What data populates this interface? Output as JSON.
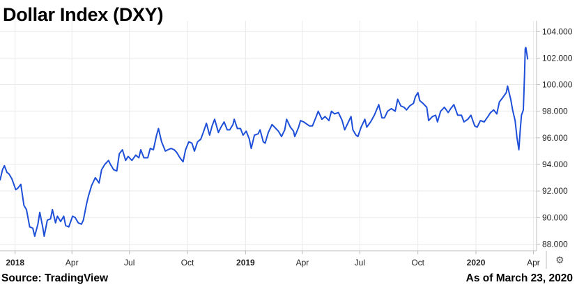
{
  "header": {
    "title": "Dollar Index (DXY)"
  },
  "footer": {
    "source": "Source: TradingView",
    "as_of": "As of March 23, 2020"
  },
  "icons": {
    "settings": "gear-icon"
  },
  "colors": {
    "line": "#1e4fd8",
    "grid": "#e9e9e9",
    "axis": "#bdbdbd"
  },
  "chart_data": {
    "type": "line",
    "title": "Dollar Index (DXY)",
    "ylim": [
      87.5,
      104.8
    ],
    "y_ticks": [
      "88.000",
      "90.000",
      "92.000",
      "94.000",
      "96.000",
      "98.000",
      "100.000",
      "102.000",
      "104.000"
    ],
    "x_ticks": [
      {
        "label": "2018",
        "date": "2018-01-01",
        "bold": true
      },
      {
        "label": "Apr",
        "date": "2018-04-01",
        "bold": false
      },
      {
        "label": "Jul",
        "date": "2018-07-01",
        "bold": false
      },
      {
        "label": "Oct",
        "date": "2018-10-01",
        "bold": false
      },
      {
        "label": "2019",
        "date": "2019-01-01",
        "bold": true
      },
      {
        "label": "Apr",
        "date": "2019-04-01",
        "bold": false
      },
      {
        "label": "Jul",
        "date": "2019-07-01",
        "bold": false
      },
      {
        "label": "Oct",
        "date": "2019-10-01",
        "bold": false
      },
      {
        "label": "2020",
        "date": "2020-01-01",
        "bold": true
      },
      {
        "label": "Apr",
        "date": "2020-04-01",
        "bold": false
      }
    ],
    "xlim": [
      "2017-12-08",
      "2020-04-06"
    ],
    "series": [
      {
        "values": [
          [
            "2017-12-08",
            92.8
          ],
          [
            "2017-12-12",
            93.6
          ],
          [
            "2017-12-15",
            93.9
          ],
          [
            "2017-12-19",
            93.4
          ],
          [
            "2017-12-22",
            93.3
          ],
          [
            "2017-12-27",
            92.9
          ],
          [
            "2018-01-02",
            92.1
          ],
          [
            "2018-01-05",
            92.2
          ],
          [
            "2018-01-10",
            92.5
          ],
          [
            "2018-01-15",
            90.9
          ],
          [
            "2018-01-19",
            90.6
          ],
          [
            "2018-01-24",
            89.3
          ],
          [
            "2018-01-29",
            89.2
          ],
          [
            "2018-02-01",
            88.6
          ],
          [
            "2018-02-06",
            89.5
          ],
          [
            "2018-02-09",
            90.4
          ],
          [
            "2018-02-14",
            89.2
          ],
          [
            "2018-02-16",
            88.6
          ],
          [
            "2018-02-21",
            89.8
          ],
          [
            "2018-02-26",
            89.9
          ],
          [
            "2018-03-01",
            90.6
          ],
          [
            "2018-03-06",
            89.6
          ],
          [
            "2018-03-09",
            90.1
          ],
          [
            "2018-03-14",
            89.7
          ],
          [
            "2018-03-19",
            90.1
          ],
          [
            "2018-03-22",
            89.4
          ],
          [
            "2018-03-27",
            89.3
          ],
          [
            "2018-04-02",
            90.1
          ],
          [
            "2018-04-06",
            90.0
          ],
          [
            "2018-04-11",
            89.6
          ],
          [
            "2018-04-16",
            89.5
          ],
          [
            "2018-04-19",
            89.8
          ],
          [
            "2018-04-24",
            91.0
          ],
          [
            "2018-04-27",
            91.6
          ],
          [
            "2018-05-02",
            92.4
          ],
          [
            "2018-05-08",
            93.0
          ],
          [
            "2018-05-14",
            92.6
          ],
          [
            "2018-05-18",
            93.6
          ],
          [
            "2018-05-23",
            94.0
          ],
          [
            "2018-05-29",
            94.3
          ],
          [
            "2018-06-01",
            94.0
          ],
          [
            "2018-06-06",
            93.6
          ],
          [
            "2018-06-11",
            93.5
          ],
          [
            "2018-06-15",
            94.8
          ],
          [
            "2018-06-20",
            95.1
          ],
          [
            "2018-06-25",
            94.3
          ],
          [
            "2018-06-29",
            94.6
          ],
          [
            "2018-07-05",
            94.3
          ],
          [
            "2018-07-11",
            94.7
          ],
          [
            "2018-07-16",
            94.5
          ],
          [
            "2018-07-19",
            95.1
          ],
          [
            "2018-07-24",
            94.5
          ],
          [
            "2018-07-30",
            94.5
          ],
          [
            "2018-08-03",
            95.2
          ],
          [
            "2018-08-08",
            95.1
          ],
          [
            "2018-08-13",
            96.2
          ],
          [
            "2018-08-16",
            96.7
          ],
          [
            "2018-08-21",
            95.7
          ],
          [
            "2018-08-27",
            95.0
          ],
          [
            "2018-08-31",
            95.1
          ],
          [
            "2018-09-05",
            95.2
          ],
          [
            "2018-09-10",
            95.1
          ],
          [
            "2018-09-14",
            94.9
          ],
          [
            "2018-09-19",
            94.5
          ],
          [
            "2018-09-24",
            94.2
          ],
          [
            "2018-09-28",
            95.1
          ],
          [
            "2018-10-03",
            95.7
          ],
          [
            "2018-10-08",
            95.6
          ],
          [
            "2018-10-12",
            95.0
          ],
          [
            "2018-10-17",
            95.7
          ],
          [
            "2018-10-22",
            95.9
          ],
          [
            "2018-10-26",
            96.4
          ],
          [
            "2018-10-31",
            97.1
          ],
          [
            "2018-11-05",
            96.2
          ],
          [
            "2018-11-09",
            96.9
          ],
          [
            "2018-11-13",
            97.4
          ],
          [
            "2018-11-19",
            96.4
          ],
          [
            "2018-11-23",
            96.8
          ],
          [
            "2018-11-28",
            97.2
          ],
          [
            "2018-12-03",
            96.6
          ],
          [
            "2018-12-07",
            96.6
          ],
          [
            "2018-12-12",
            97.0
          ],
          [
            "2018-12-14",
            97.4
          ],
          [
            "2018-12-19",
            96.7
          ],
          [
            "2018-12-24",
            96.7
          ],
          [
            "2018-12-28",
            96.2
          ],
          [
            "2019-01-02",
            96.5
          ],
          [
            "2019-01-07",
            95.9
          ],
          [
            "2019-01-10",
            95.2
          ],
          [
            "2019-01-15",
            96.2
          ],
          [
            "2019-01-21",
            96.3
          ],
          [
            "2019-01-24",
            96.6
          ],
          [
            "2019-01-29",
            95.7
          ],
          [
            "2019-02-01",
            95.6
          ],
          [
            "2019-02-06",
            96.4
          ],
          [
            "2019-02-12",
            97.0
          ],
          [
            "2019-02-18",
            96.7
          ],
          [
            "2019-02-22",
            96.5
          ],
          [
            "2019-02-27",
            96.1
          ],
          [
            "2019-03-04",
            96.6
          ],
          [
            "2019-03-07",
            97.4
          ],
          [
            "2019-03-13",
            96.8
          ],
          [
            "2019-03-18",
            96.5
          ],
          [
            "2019-03-20",
            96.1
          ],
          [
            "2019-03-26",
            96.8
          ],
          [
            "2019-03-29",
            97.3
          ],
          [
            "2019-04-03",
            97.2
          ],
          [
            "2019-04-09",
            97.0
          ],
          [
            "2019-04-12",
            96.9
          ],
          [
            "2019-04-17",
            96.9
          ],
          [
            "2019-04-23",
            97.6
          ],
          [
            "2019-04-26",
            98.0
          ],
          [
            "2019-05-02",
            97.4
          ],
          [
            "2019-05-07",
            97.6
          ],
          [
            "2019-05-13",
            97.3
          ],
          [
            "2019-05-17",
            98.0
          ],
          [
            "2019-05-22",
            97.8
          ],
          [
            "2019-05-28",
            97.9
          ],
          [
            "2019-06-03",
            97.3
          ],
          [
            "2019-06-07",
            96.6
          ],
          [
            "2019-06-12",
            97.1
          ],
          [
            "2019-06-17",
            97.6
          ],
          [
            "2019-06-20",
            96.6
          ],
          [
            "2019-06-25",
            96.2
          ],
          [
            "2019-06-28",
            96.1
          ],
          [
            "2019-07-03",
            96.8
          ],
          [
            "2019-07-09",
            97.4
          ],
          [
            "2019-07-12",
            96.8
          ],
          [
            "2019-07-18",
            97.2
          ],
          [
            "2019-07-24",
            97.7
          ],
          [
            "2019-07-31",
            98.5
          ],
          [
            "2019-08-05",
            97.5
          ],
          [
            "2019-08-09",
            97.5
          ],
          [
            "2019-08-14",
            98.0
          ],
          [
            "2019-08-20",
            98.2
          ],
          [
            "2019-08-26",
            98.0
          ],
          [
            "2019-08-30",
            98.9
          ],
          [
            "2019-09-04",
            98.4
          ],
          [
            "2019-09-09",
            98.3
          ],
          [
            "2019-09-13",
            98.1
          ],
          [
            "2019-09-18",
            98.4
          ],
          [
            "2019-09-24",
            98.6
          ],
          [
            "2019-09-27",
            99.1
          ],
          [
            "2019-10-01",
            99.4
          ],
          [
            "2019-10-04",
            98.8
          ],
          [
            "2019-10-09",
            98.6
          ],
          [
            "2019-10-15",
            98.3
          ],
          [
            "2019-10-18",
            97.3
          ],
          [
            "2019-10-24",
            97.6
          ],
          [
            "2019-10-29",
            97.7
          ],
          [
            "2019-11-01",
            97.2
          ],
          [
            "2019-11-06",
            98.0
          ],
          [
            "2019-11-12",
            98.3
          ],
          [
            "2019-11-18",
            97.9
          ],
          [
            "2019-11-22",
            98.2
          ],
          [
            "2019-11-27",
            98.5
          ],
          [
            "2019-12-03",
            97.7
          ],
          [
            "2019-12-09",
            97.7
          ],
          [
            "2019-12-13",
            97.2
          ],
          [
            "2019-12-19",
            97.4
          ],
          [
            "2019-12-24",
            97.7
          ],
          [
            "2019-12-30",
            96.9
          ],
          [
            "2020-01-03",
            96.8
          ],
          [
            "2020-01-08",
            97.3
          ],
          [
            "2020-01-14",
            97.2
          ],
          [
            "2020-01-20",
            97.6
          ],
          [
            "2020-01-24",
            97.9
          ],
          [
            "2020-01-29",
            98.1
          ],
          [
            "2020-02-03",
            97.8
          ],
          [
            "2020-02-07",
            98.7
          ],
          [
            "2020-02-12",
            99.0
          ],
          [
            "2020-02-18",
            99.4
          ],
          [
            "2020-02-20",
            99.9
          ],
          [
            "2020-02-25",
            98.9
          ],
          [
            "2020-02-28",
            98.1
          ],
          [
            "2020-03-03",
            97.3
          ],
          [
            "2020-03-06",
            96.0
          ],
          [
            "2020-03-09",
            95.1
          ],
          [
            "2020-03-11",
            96.5
          ],
          [
            "2020-03-13",
            97.7
          ],
          [
            "2020-03-16",
            98.1
          ],
          [
            "2020-03-18",
            100.9
          ],
          [
            "2020-03-19",
            102.7
          ],
          [
            "2020-03-20",
            102.8
          ],
          [
            "2020-03-23",
            101.9
          ]
        ]
      }
    ]
  }
}
